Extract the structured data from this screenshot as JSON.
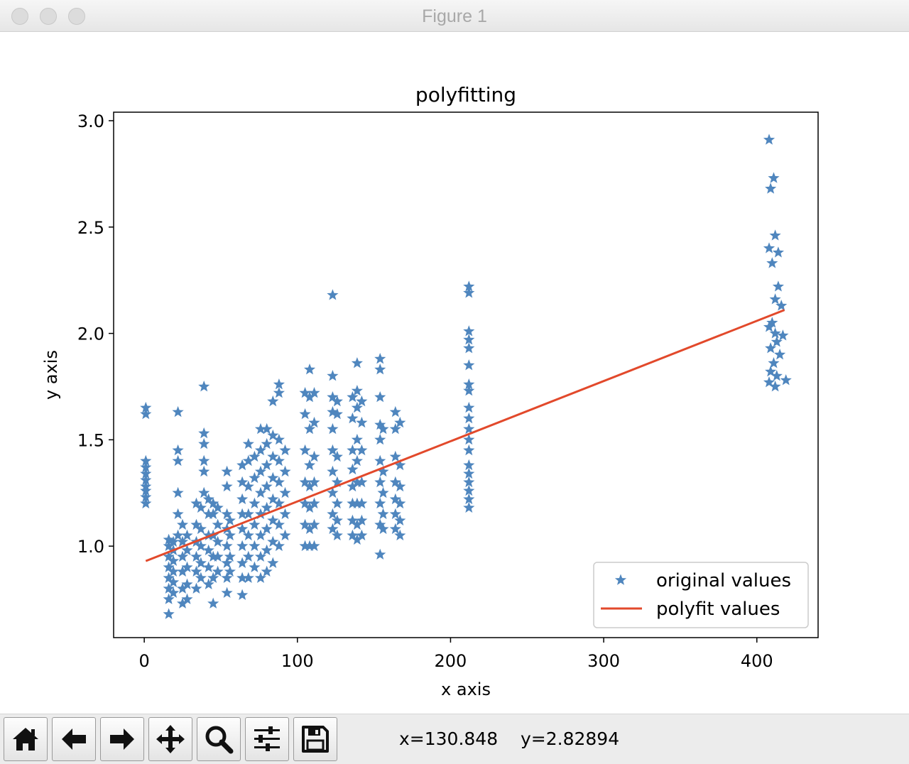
{
  "window": {
    "title": "Figure 1"
  },
  "toolbar": {
    "buttons": [
      {
        "name": "home-button",
        "icon": "home-icon"
      },
      {
        "name": "back-button",
        "icon": "arrow-left-icon"
      },
      {
        "name": "forward-button",
        "icon": "arrow-right-icon"
      },
      {
        "name": "pan-button",
        "icon": "move-icon"
      },
      {
        "name": "zoom-button",
        "icon": "magnifier-icon"
      },
      {
        "name": "subplots-button",
        "icon": "sliders-icon"
      },
      {
        "name": "save-button",
        "icon": "floppy-disk-icon"
      }
    ],
    "x_readout": "x=130.848",
    "y_readout": "y=2.82894"
  },
  "colors": {
    "scatter": "#4f86be",
    "fit": "#e2492b"
  },
  "chart_data": {
    "type": "scatter",
    "title": "polyfitting",
    "xlabel": "x axis",
    "ylabel": "y axis",
    "xlim": [
      -20,
      440
    ],
    "ylim": [
      0.57,
      3.04
    ],
    "xticks": [
      0,
      100,
      200,
      300,
      400
    ],
    "xtick_labels": [
      "0",
      "100",
      "200",
      "300",
      "400"
    ],
    "yticks": [
      1.0,
      1.5,
      2.0,
      2.5,
      3.0
    ],
    "ytick_labels": [
      "1.0",
      "1.5",
      "2.0",
      "2.5",
      "3.0"
    ],
    "legend_position": "lower-right",
    "series": [
      {
        "name": "original values",
        "marker": "star",
        "points": [
          [
            1,
            1.65
          ],
          [
            1,
            1.62
          ],
          [
            1,
            1.4
          ],
          [
            1,
            1.37
          ],
          [
            1,
            1.34
          ],
          [
            1,
            1.31
          ],
          [
            1,
            1.28
          ],
          [
            1,
            1.26
          ],
          [
            1,
            1.23
          ],
          [
            1,
            1.2
          ],
          [
            22,
            1.63
          ],
          [
            22,
            1.45
          ],
          [
            22,
            1.4
          ],
          [
            22,
            1.25
          ],
          [
            22,
            1.15
          ],
          [
            22,
            1.05
          ],
          [
            16,
            0.68
          ],
          [
            16,
            0.75
          ],
          [
            16,
            0.8
          ],
          [
            16,
            0.85
          ],
          [
            16,
            0.9
          ],
          [
            16,
            0.95
          ],
          [
            16,
            1.0
          ],
          [
            16,
            1.03
          ],
          [
            19,
            0.78
          ],
          [
            19,
            0.83
          ],
          [
            19,
            0.88
          ],
          [
            19,
            0.93
          ],
          [
            19,
            0.98
          ],
          [
            19,
            1.02
          ],
          [
            25,
            0.73
          ],
          [
            25,
            0.8
          ],
          [
            25,
            0.88
          ],
          [
            25,
            0.95
          ],
          [
            25,
            1.02
          ],
          [
            25,
            1.1
          ],
          [
            28,
            0.75
          ],
          [
            28,
            0.82
          ],
          [
            28,
            0.9
          ],
          [
            28,
            0.98
          ],
          [
            28,
            1.05
          ],
          [
            34,
            0.8
          ],
          [
            34,
            0.88
          ],
          [
            34,
            0.95
          ],
          [
            34,
            1.02
          ],
          [
            34,
            1.1
          ],
          [
            34,
            1.2
          ],
          [
            37,
            0.85
          ],
          [
            37,
            0.92
          ],
          [
            37,
            1.0
          ],
          [
            37,
            1.08
          ],
          [
            37,
            1.18
          ],
          [
            39,
            1.75
          ],
          [
            39,
            1.53
          ],
          [
            39,
            1.48
          ],
          [
            39,
            1.4
          ],
          [
            39,
            1.35
          ],
          [
            39,
            1.25
          ],
          [
            42,
            0.82
          ],
          [
            42,
            0.9
          ],
          [
            42,
            0.98
          ],
          [
            42,
            1.05
          ],
          [
            42,
            1.15
          ],
          [
            42,
            1.22
          ],
          [
            45,
            0.73
          ],
          [
            45,
            0.85
          ],
          [
            45,
            0.95
          ],
          [
            45,
            1.05
          ],
          [
            45,
            1.15
          ],
          [
            45,
            1.2
          ],
          [
            48,
            0.88
          ],
          [
            48,
            0.95
          ],
          [
            48,
            1.02
          ],
          [
            48,
            1.1
          ],
          [
            48,
            1.18
          ],
          [
            54,
            0.78
          ],
          [
            54,
            0.85
          ],
          [
            54,
            0.92
          ],
          [
            54,
            1.0
          ],
          [
            54,
            1.08
          ],
          [
            54,
            1.15
          ],
          [
            54,
            1.28
          ],
          [
            54,
            1.35
          ],
          [
            56,
            0.88
          ],
          [
            56,
            0.95
          ],
          [
            56,
            1.05
          ],
          [
            56,
            1.12
          ],
          [
            64,
            0.77
          ],
          [
            64,
            0.85
          ],
          [
            64,
            0.92
          ],
          [
            64,
            1.0
          ],
          [
            64,
            1.08
          ],
          [
            64,
            1.15
          ],
          [
            64,
            1.22
          ],
          [
            64,
            1.3
          ],
          [
            64,
            1.38
          ],
          [
            68,
            0.85
          ],
          [
            68,
            0.95
          ],
          [
            68,
            1.05
          ],
          [
            68,
            1.15
          ],
          [
            68,
            1.28
          ],
          [
            68,
            1.4
          ],
          [
            68,
            1.48
          ],
          [
            72,
            0.9
          ],
          [
            72,
            1.0
          ],
          [
            72,
            1.1
          ],
          [
            72,
            1.2
          ],
          [
            72,
            1.32
          ],
          [
            72,
            1.42
          ],
          [
            76,
            0.85
          ],
          [
            76,
            0.95
          ],
          [
            76,
            1.05
          ],
          [
            76,
            1.15
          ],
          [
            76,
            1.25
          ],
          [
            76,
            1.35
          ],
          [
            76,
            1.45
          ],
          [
            76,
            1.55
          ],
          [
            80,
            0.88
          ],
          [
            80,
            0.98
          ],
          [
            80,
            1.08
          ],
          [
            80,
            1.18
          ],
          [
            80,
            1.28
          ],
          [
            80,
            1.38
          ],
          [
            80,
            1.48
          ],
          [
            80,
            1.55
          ],
          [
            84,
            0.92
          ],
          [
            84,
            1.02
          ],
          [
            84,
            1.12
          ],
          [
            84,
            1.22
          ],
          [
            84,
            1.32
          ],
          [
            84,
            1.42
          ],
          [
            84,
            1.52
          ],
          [
            84,
            1.68
          ],
          [
            88,
            1.0
          ],
          [
            88,
            1.1
          ],
          [
            88,
            1.2
          ],
          [
            88,
            1.3
          ],
          [
            88,
            1.4
          ],
          [
            88,
            1.5
          ],
          [
            88,
            1.72
          ],
          [
            88,
            1.76
          ],
          [
            92,
            1.05
          ],
          [
            92,
            1.15
          ],
          [
            92,
            1.25
          ],
          [
            92,
            1.35
          ],
          [
            92,
            1.45
          ],
          [
            105,
            1.0
          ],
          [
            105,
            1.1
          ],
          [
            105,
            1.2
          ],
          [
            105,
            1.3
          ],
          [
            105,
            1.45
          ],
          [
            105,
            1.62
          ],
          [
            105,
            1.72
          ],
          [
            108,
            1.0
          ],
          [
            108,
            1.08
          ],
          [
            108,
            1.18
          ],
          [
            108,
            1.28
          ],
          [
            108,
            1.38
          ],
          [
            108,
            1.55
          ],
          [
            108,
            1.7
          ],
          [
            108,
            1.83
          ],
          [
            111,
            1.0
          ],
          [
            111,
            1.1
          ],
          [
            111,
            1.2
          ],
          [
            111,
            1.3
          ],
          [
            111,
            1.42
          ],
          [
            111,
            1.58
          ],
          [
            111,
            1.72
          ],
          [
            123,
            2.18
          ],
          [
            123,
            1.8
          ],
          [
            123,
            1.7
          ],
          [
            123,
            1.63
          ],
          [
            123,
            1.55
          ],
          [
            123,
            1.45
          ],
          [
            123,
            1.35
          ],
          [
            123,
            1.25
          ],
          [
            123,
            1.15
          ],
          [
            123,
            1.08
          ],
          [
            126,
            1.05
          ],
          [
            126,
            1.12
          ],
          [
            126,
            1.2
          ],
          [
            126,
            1.3
          ],
          [
            126,
            1.42
          ],
          [
            126,
            1.62
          ],
          [
            126,
            1.68
          ],
          [
            136,
            1.05
          ],
          [
            136,
            1.12
          ],
          [
            136,
            1.2
          ],
          [
            136,
            1.28
          ],
          [
            136,
            1.36
          ],
          [
            136,
            1.45
          ],
          [
            136,
            1.6
          ],
          [
            136,
            1.7
          ],
          [
            139,
            1.86
          ],
          [
            139,
            1.73
          ],
          [
            139,
            1.65
          ],
          [
            139,
            1.5
          ],
          [
            139,
            1.4
          ],
          [
            139,
            1.3
          ],
          [
            139,
            1.2
          ],
          [
            139,
            1.1
          ],
          [
            139,
            1.03
          ],
          [
            142,
            1.05
          ],
          [
            142,
            1.12
          ],
          [
            142,
            1.2
          ],
          [
            142,
            1.3
          ],
          [
            142,
            1.45
          ],
          [
            142,
            1.58
          ],
          [
            142,
            1.68
          ],
          [
            154,
            1.88
          ],
          [
            154,
            1.83
          ],
          [
            154,
            1.7
          ],
          [
            154,
            1.57
          ],
          [
            154,
            1.5
          ],
          [
            154,
            1.4
          ],
          [
            154,
            1.3
          ],
          [
            154,
            1.2
          ],
          [
            154,
            1.1
          ],
          [
            154,
            0.96
          ],
          [
            156,
            1.08
          ],
          [
            156,
            1.15
          ],
          [
            156,
            1.25
          ],
          [
            156,
            1.35
          ],
          [
            156,
            1.55
          ],
          [
            164,
            1.08
          ],
          [
            164,
            1.15
          ],
          [
            164,
            1.22
          ],
          [
            164,
            1.3
          ],
          [
            164,
            1.42
          ],
          [
            164,
            1.55
          ],
          [
            164,
            1.63
          ],
          [
            167,
            1.05
          ],
          [
            167,
            1.12
          ],
          [
            167,
            1.2
          ],
          [
            167,
            1.28
          ],
          [
            167,
            1.38
          ],
          [
            167,
            1.58
          ],
          [
            212,
            2.22
          ],
          [
            212,
            2.19
          ],
          [
            212,
            2.01
          ],
          [
            212,
            1.97
          ],
          [
            212,
            1.93
          ],
          [
            212,
            1.85
          ],
          [
            212,
            1.76
          ],
          [
            212,
            1.73
          ],
          [
            212,
            1.65
          ],
          [
            212,
            1.6
          ],
          [
            212,
            1.55
          ],
          [
            212,
            1.5
          ],
          [
            212,
            1.45
          ],
          [
            212,
            1.38
          ],
          [
            212,
            1.34
          ],
          [
            212,
            1.3
          ],
          [
            212,
            1.26
          ],
          [
            212,
            1.22
          ],
          [
            212,
            1.18
          ],
          [
            408,
            2.91
          ],
          [
            409,
            2.68
          ],
          [
            411,
            2.73
          ],
          [
            408,
            2.4
          ],
          [
            412,
            2.46
          ],
          [
            414,
            2.38
          ],
          [
            410,
            2.33
          ],
          [
            414,
            2.22
          ],
          [
            412,
            2.16
          ],
          [
            416,
            2.13
          ],
          [
            410,
            2.05
          ],
          [
            408,
            2.03
          ],
          [
            412,
            2.0
          ],
          [
            417,
            1.99
          ],
          [
            413,
            1.96
          ],
          [
            409,
            1.93
          ],
          [
            415,
            1.9
          ],
          [
            411,
            1.86
          ],
          [
            409,
            1.82
          ],
          [
            413,
            1.8
          ],
          [
            408,
            1.77
          ],
          [
            419,
            1.78
          ],
          [
            412,
            1.75
          ]
        ]
      },
      {
        "name": "polyfit values",
        "marker": "line",
        "points": [
          [
            1,
            0.93
          ],
          [
            418,
            2.11
          ]
        ]
      }
    ]
  }
}
